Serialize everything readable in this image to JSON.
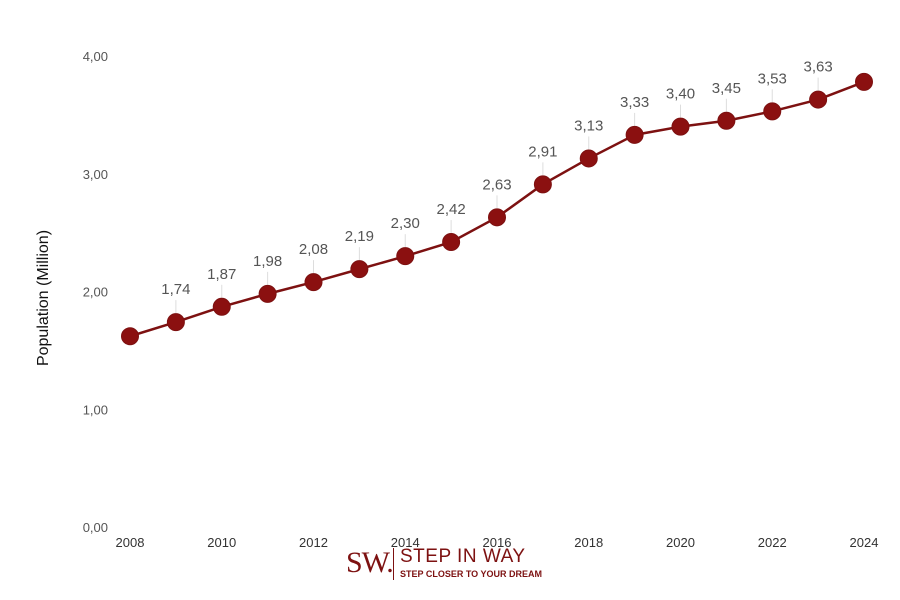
{
  "chart_data": {
    "type": "line",
    "x": [
      2008,
      2009,
      2010,
      2011,
      2012,
      2013,
      2014,
      2015,
      2016,
      2017,
      2018,
      2019,
      2020,
      2021,
      2022,
      2023,
      2024
    ],
    "values": [
      1.62,
      1.74,
      1.87,
      1.98,
      2.08,
      2.19,
      2.3,
      2.42,
      2.63,
      2.91,
      3.13,
      3.33,
      3.4,
      3.45,
      3.53,
      3.63,
      3.78
    ],
    "data_labels": [
      "",
      "1,74",
      "1,87",
      "1,98",
      "2,08",
      "2,19",
      "2,30",
      "2,42",
      "2,63",
      "2,91",
      "3,13",
      "3,33",
      "3,40",
      "3,45",
      "3,53",
      "3,63",
      ""
    ],
    "x_tick_labels": [
      "2008",
      "2010",
      "2012",
      "2014",
      "2016",
      "2018",
      "2020",
      "2022",
      "2024"
    ],
    "y_tick_labels": [
      "0,00",
      "1,00",
      "2,00",
      "3,00",
      "4,00"
    ],
    "ylabel": "Population (Million)",
    "xlabel": "",
    "title": "",
    "ylim": [
      0,
      4
    ],
    "grid": false,
    "legend": "none",
    "colors": {
      "line": "#7d1111",
      "marker": "#8b1010"
    }
  },
  "logo": {
    "mark": "SW.",
    "name": "STEP IN WAY",
    "tagline": "STEP CLOSER TO YOUR DREAM",
    "color": "#7d1111"
  }
}
